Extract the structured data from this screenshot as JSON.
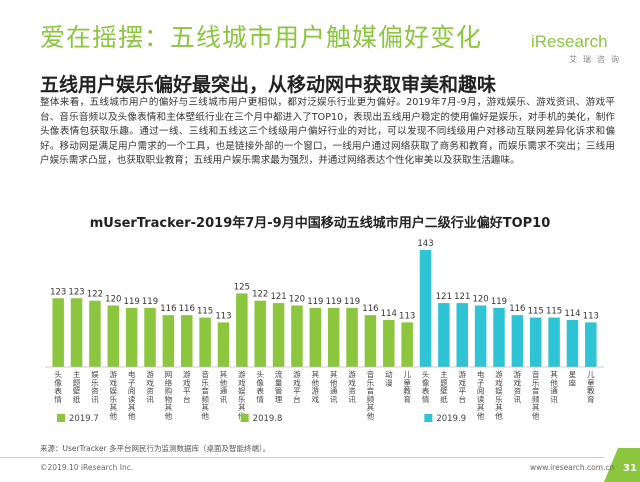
{
  "header": {
    "title": "爱在摇摆：五线城市用户触媒偏好变化",
    "subtitle": "五线用户娱乐偏好最突出，从移动网中获取审美和趣味",
    "logo_name": "iResearch",
    "logo_sub": "艾瑞咨询"
  },
  "summary": "整体来看，五线城市用户的偏好与三线城市用户更相似，都对泛娱乐行业更为偏好。2019年7月-9月，游戏娱乐、游戏资讯、游戏平台、音乐音频以及头像表情和主体壁纸行业在三个月中都进入了TOP10，表现出五线用户稳定的使用偏好是娱乐，对手机的美化，制作头像表情包获取乐趣。通过一线、三线和五线这三个线级用户偏好行业的对比，可以发现不同线级用户对移动互联网差异化诉求和偏好。移动网是满足用户需求的一个工具，也是链接外部的一个窗口，一线用户通过网络获取了商务和教育，而娱乐需求不突出；三线用户娱乐需求凸显，也获取职业教育；五线用户娱乐需求最为强烈，并通过网络表达个性化审美以及获取生活趣味。",
  "chart_data": {
    "type": "bar",
    "title": "mUserTracker-2019年7月-9月中国移动五线城市用户二级行业偏好TOP10",
    "groups": [
      {
        "name": "2019.7",
        "color": "#8cc63f",
        "categories": [
          "头像表情",
          "主题壁纸",
          "娱乐资讯",
          "游戏娱乐其他",
          "电子阅读其他",
          "游戏资讯",
          "网络购物其他",
          "游戏平台",
          "音乐音频其他",
          "其他通讯"
        ],
        "values": [
          123,
          123,
          122,
          120,
          119,
          119,
          116,
          116,
          115,
          113
        ]
      },
      {
        "name": "2019.8",
        "color": "#8cc63f",
        "categories": [
          "游戏娱乐其他",
          "头像表情",
          "流量管理",
          "游戏平台",
          "其他游戏",
          "其他通讯",
          "游戏资讯",
          "音乐音频其他",
          "动漫",
          "儿童教育"
        ],
        "values": [
          125,
          122,
          121,
          120,
          119,
          119,
          119,
          116,
          114,
          113
        ]
      },
      {
        "name": "2019.9",
        "color": "#2ec4d6",
        "categories": [
          "头像表情",
          "主题壁纸",
          "游戏平台",
          "电子阅读其他",
          "游戏娱乐其他",
          "游戏资讯",
          "音乐音频其他",
          "其他通讯",
          "星座",
          "儿童教育"
        ],
        "values": [
          143,
          121,
          121,
          120,
          119,
          116,
          115,
          115,
          114,
          113
        ]
      }
    ]
  },
  "source": "来源：UserTracker 多平台网民行为监测数据库（桌面及智能终端）。",
  "footer": {
    "copyright": "©2019.10 iResearch Inc.",
    "website": "www.iresearch.com.cn",
    "page": "31"
  }
}
